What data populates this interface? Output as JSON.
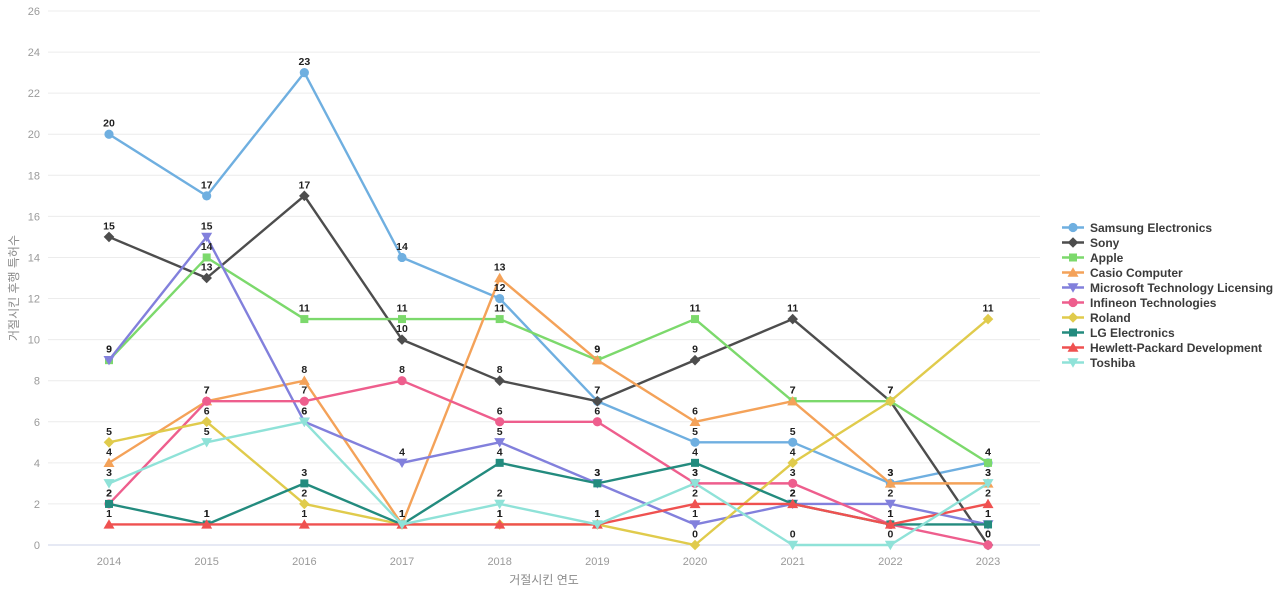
{
  "chart_data": {
    "type": "line",
    "title": "",
    "xlabel": "거절시킨 연도",
    "ylabel": "거절시킨 후행 특허수",
    "x": [
      2014,
      2015,
      2016,
      2017,
      2018,
      2019,
      2020,
      2021,
      2022,
      2023
    ],
    "ylim": [
      0,
      26
    ],
    "ytick_step": 2,
    "grid": "horizontal",
    "legend_position": "right",
    "point_labels": "on",
    "colors": {
      "gridline": "#ececec",
      "baseline": "#ccd3e8",
      "tick_text": "#9a9a9a",
      "label_text": "#1f1f1f"
    },
    "series": [
      {
        "name": "Samsung Electronics",
        "color": "#6fafe0",
        "marker": "circle",
        "values": [
          20,
          17,
          23,
          14,
          12,
          7,
          5,
          5,
          3,
          4
        ]
      },
      {
        "name": "Sony",
        "color": "#4d4d4d",
        "marker": "diamond",
        "values": [
          15,
          13,
          17,
          10,
          8,
          7,
          9,
          11,
          7,
          0
        ]
      },
      {
        "name": "Apple",
        "color": "#7cd96c",
        "marker": "square",
        "values": [
          9,
          14,
          11,
          11,
          11,
          9,
          11,
          7,
          7,
          4
        ]
      },
      {
        "name": "Casio Computer",
        "color": "#f4a259",
        "marker": "triangle-up",
        "values": [
          4,
          7,
          8,
          1,
          13,
          9,
          6,
          7,
          3,
          3
        ]
      },
      {
        "name": "Microsoft Technology Licensing",
        "color": "#8280dc",
        "marker": "triangle-down",
        "values": [
          9,
          15,
          6,
          4,
          5,
          3,
          1,
          2,
          2,
          1
        ]
      },
      {
        "name": "Infineon Technologies",
        "color": "#ee5e8d",
        "marker": "circle",
        "values": [
          2,
          7,
          7,
          8,
          6,
          6,
          3,
          3,
          1,
          0
        ]
      },
      {
        "name": "Roland",
        "color": "#e0cb4c",
        "marker": "diamond",
        "values": [
          5,
          6,
          2,
          1,
          1,
          1,
          0,
          4,
          7,
          11
        ]
      },
      {
        "name": "LG Electronics",
        "color": "#238b7e",
        "marker": "square",
        "values": [
          2,
          1,
          3,
          1,
          4,
          3,
          4,
          2,
          1,
          1
        ]
      },
      {
        "name": "Hewlett-Packard Development",
        "color": "#ef5150",
        "marker": "triangle-up",
        "values": [
          1,
          1,
          1,
          1,
          1,
          1,
          2,
          2,
          1,
          2
        ]
      },
      {
        "name": "Toshiba",
        "color": "#8fe2d8",
        "marker": "triangle-down",
        "values": [
          3,
          5,
          6,
          1,
          2,
          1,
          3,
          0,
          0,
          3
        ]
      }
    ]
  }
}
